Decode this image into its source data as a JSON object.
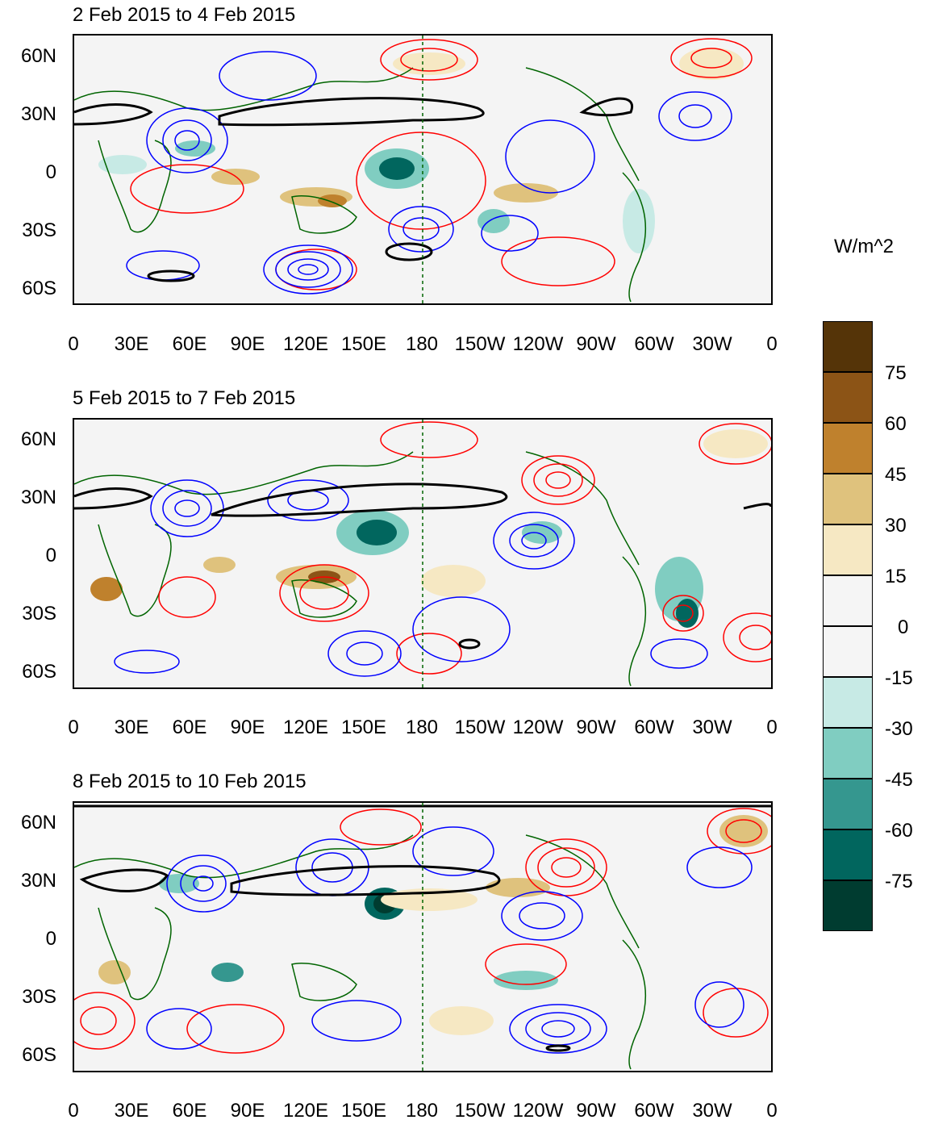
{
  "panels": [
    {
      "title": "2 Feb 2015 to 4 Feb 2015"
    },
    {
      "title": "5 Feb 2015 to 7 Feb 2015"
    },
    {
      "title": "8 Feb 2015 to 10 Feb 2015"
    }
  ],
  "lat_labels": [
    "60N",
    "30N",
    "0",
    "30S",
    "60S"
  ],
  "lon_labels": [
    "0",
    "30E",
    "60E",
    "90E",
    "120E",
    "150E",
    "180",
    "150W",
    "120W",
    "90W",
    "60W",
    "30W",
    "0"
  ],
  "colorbar": {
    "units": "W/m^2",
    "labels": [
      "75",
      "60",
      "45",
      "30",
      "15",
      "0",
      "-15",
      "-30",
      "-45",
      "-60",
      "-75"
    ],
    "colors": [
      "#553408",
      "#8c5416",
      "#bf812d",
      "#dfc27d",
      "#f6e8c3",
      "#f5f5f5",
      "#f5f5f5",
      "#c7eae5",
      "#80cdc1",
      "#35978f",
      "#01665e",
      "#003c30"
    ]
  },
  "legend_colors": {
    "positive_contour": "#ff0000",
    "negative_contour": "#0000ff",
    "coastline": "#006400",
    "jet_contour": "#000000"
  }
}
